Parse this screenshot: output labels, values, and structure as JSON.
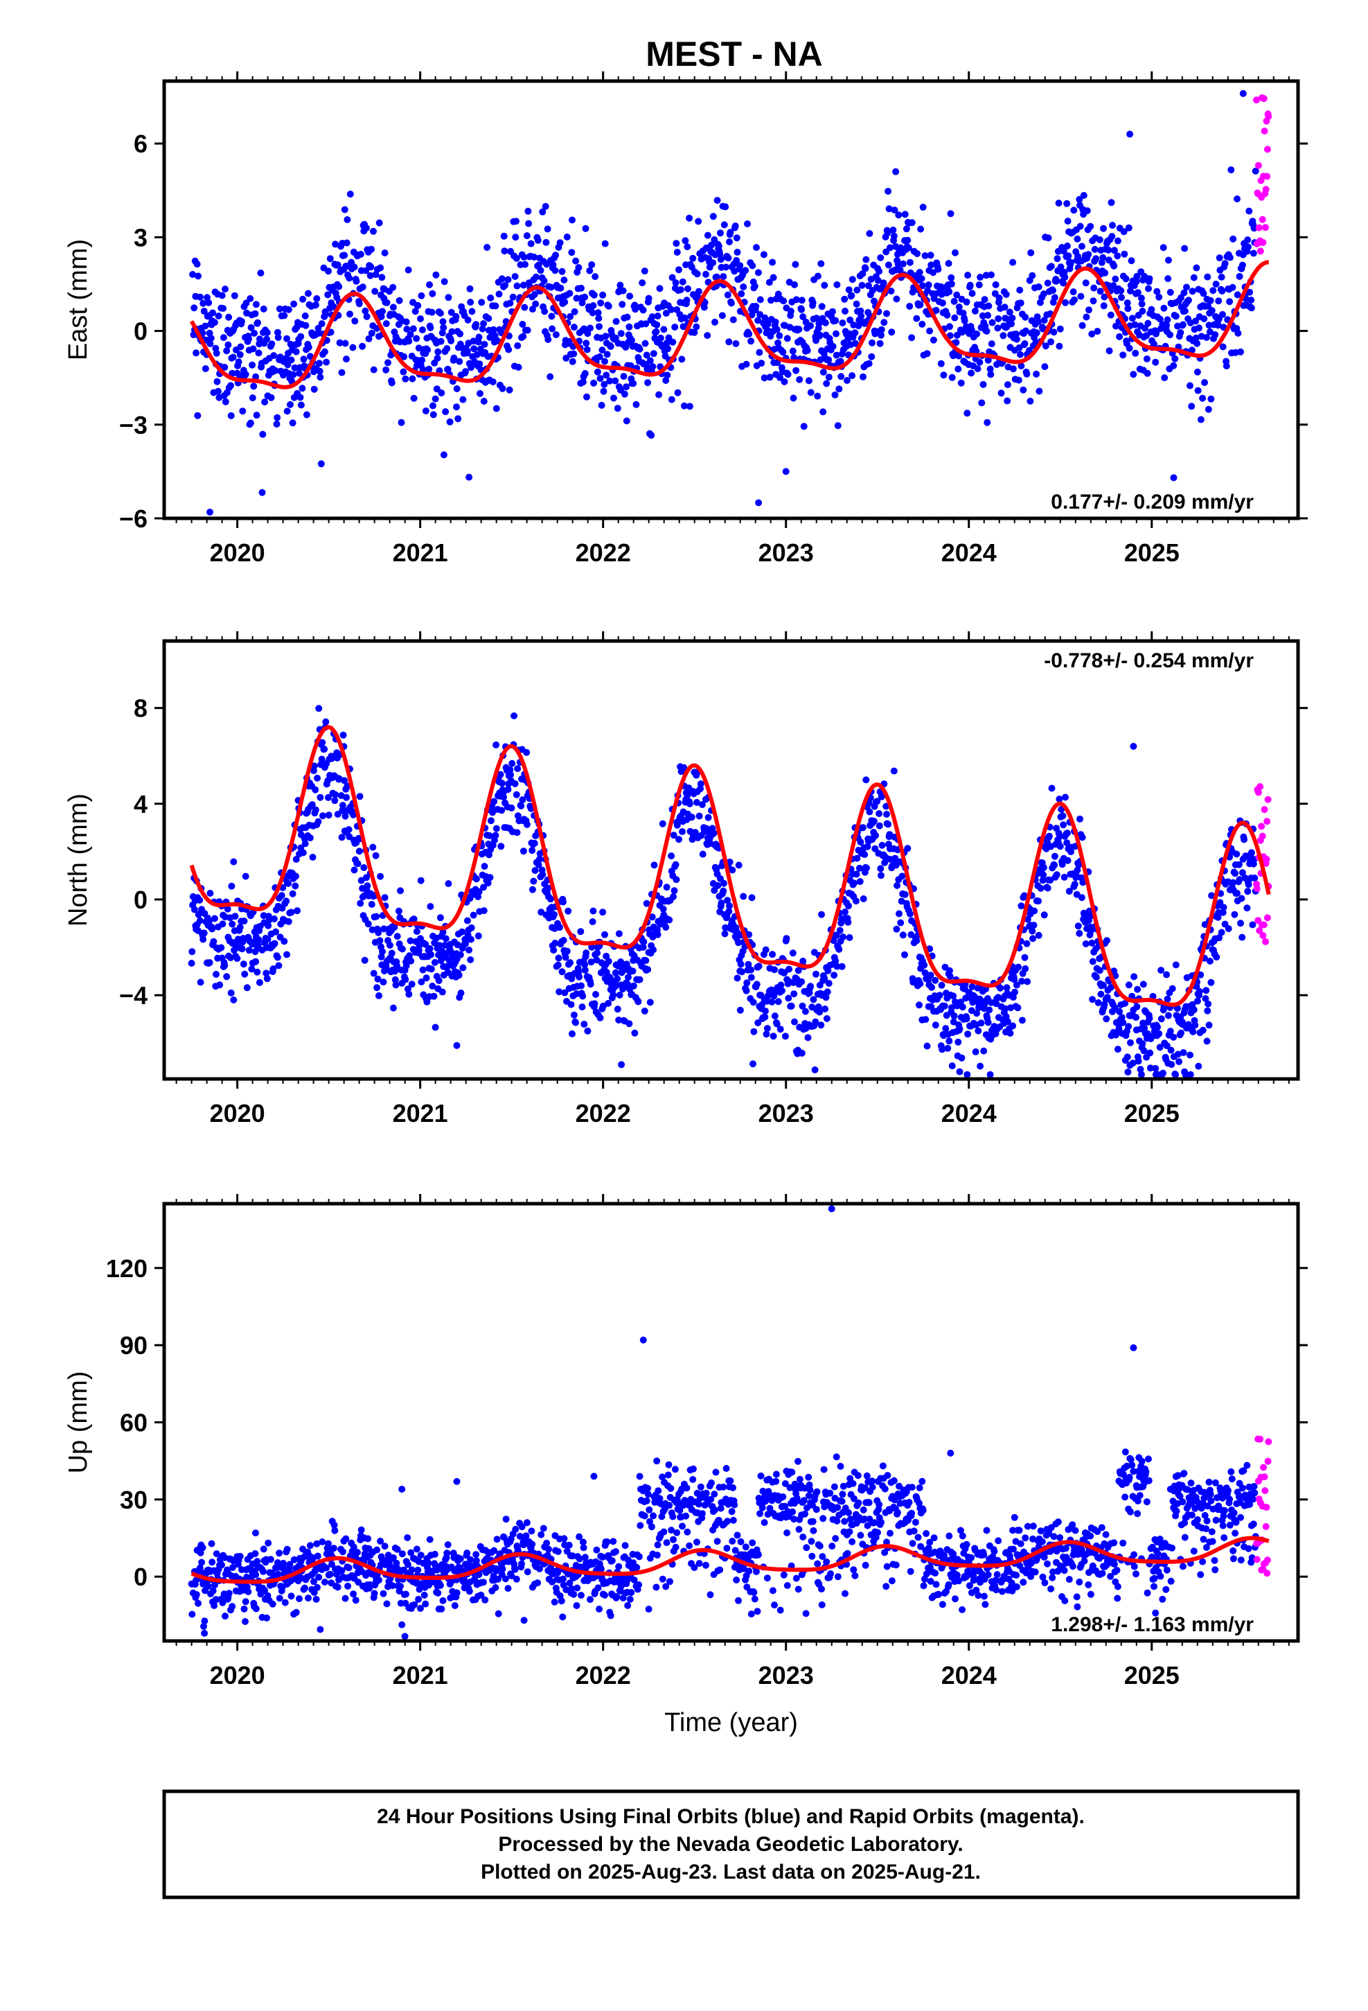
{
  "title": "MEST - NA",
  "colors": {
    "final": "#0000ff",
    "rapid": "#ff00ff",
    "model": "#ff0000",
    "frame": "#000000"
  },
  "footer": {
    "line1": "24 Hour Positions Using Final Orbits (blue) and Rapid Orbits (magenta).",
    "line2": "Processed by the Nevada Geodetic Laboratory.",
    "line3": "Plotted on 2025-Aug-23. Last data on 2025-Aug-21."
  },
  "chart_data": [
    {
      "type": "scatter",
      "component": "east",
      "ylabel": "East (mm)",
      "xlabel": "",
      "xlim": [
        2019.6,
        2025.8
      ],
      "ylim": [
        -6,
        8
      ],
      "yticks": [
        -6,
        -3,
        0,
        3,
        6
      ],
      "xticks": [
        2020,
        2021,
        2022,
        2023,
        2024,
        2025
      ],
      "rate_text": "0.177+/- 0.209 mm/yr",
      "rate_position": "bottom-right",
      "data_start": 2019.75,
      "final_end": 2025.57,
      "data_end": 2025.64,
      "model": {
        "offset": 0.0,
        "rate": 0.177,
        "annual_amplitude": 1.2,
        "annual_peak": 2020.65,
        "semiannual_amplitude": 0.4,
        "semiannual_phase": 0.3,
        "curve_min": -1.8,
        "curve_max": 2.2
      },
      "scatter_std": 1.1,
      "rapid_range": [
        2.5,
        7.6
      ],
      "outliers": [
        [
          2019.85,
          -5.8
        ],
        [
          2022.85,
          -5.5
        ],
        [
          2023.0,
          -4.5
        ],
        [
          2025.12,
          -4.7
        ],
        [
          2024.88,
          6.3
        ],
        [
          2025.5,
          7.6
        ],
        [
          2023.6,
          5.1
        ]
      ]
    },
    {
      "type": "scatter",
      "component": "north",
      "ylabel": "North (mm)",
      "xlabel": "",
      "xlim": [
        2019.6,
        2025.8
      ],
      "ylim": [
        -7.5,
        10.8
      ],
      "yticks": [
        -4,
        0,
        4,
        8
      ],
      "xticks": [
        2020,
        2021,
        2022,
        2023,
        2024,
        2025
      ],
      "rate_text": "-0.778+/- 0.254 mm/yr",
      "rate_position": "top-right",
      "data_start": 2019.75,
      "final_end": 2025.57,
      "data_end": 2025.64,
      "model": {
        "offset": 1.2,
        "rate": -0.778,
        "annual_amplitude": 3.8,
        "annual_peak": 2020.5,
        "semiannual_amplitude": 1.2,
        "semiannual_phase": 0.0,
        "curve_min": -4.4,
        "curve_max": 7.2
      },
      "scatter_std": 1.1,
      "rapid_range": [
        -2.0,
        5.1
      ],
      "outliers": [
        [
          2019.98,
          -4.2
        ],
        [
          2021.2,
          -6.1
        ],
        [
          2022.1,
          -6.9
        ],
        [
          2023.95,
          -7.2
        ],
        [
          2024.9,
          6.4
        ]
      ]
    },
    {
      "type": "scatter",
      "component": "up",
      "ylabel": "Up (mm)",
      "xlabel": "Time (year)",
      "xlim": [
        2019.6,
        2025.8
      ],
      "ylim": [
        -25,
        145
      ],
      "yticks": [
        0,
        30,
        60,
        90,
        120
      ],
      "xticks": [
        2020,
        2021,
        2022,
        2023,
        2024,
        2025
      ],
      "rate_text": "1.298+/- 1.163 mm/yr",
      "rate_position": "bottom-right",
      "data_start": 2019.75,
      "final_end": 2025.57,
      "data_end": 2025.64,
      "model": {
        "offset": 2.0,
        "rate": 1.298,
        "annual_amplitude": 3.5,
        "annual_peak": 2020.55,
        "semiannual_amplitude": 0.8,
        "semiannual_phase": 0.2,
        "curve_min": -2.0,
        "curve_max": 15.0
      },
      "scatter_std": 5.5,
      "elevated_segments": [
        [
          2022.2,
          2022.72,
          30
        ],
        [
          2022.85,
          2023.17,
          32
        ],
        [
          2023.2,
          2023.75,
          30
        ],
        [
          2024.82,
          2024.99,
          38
        ],
        [
          2025.09,
          2025.57,
          30
        ]
      ],
      "rapid_range": [
        -2,
        56
      ],
      "outliers": [
        [
          2022.22,
          92
        ],
        [
          2023.25,
          143
        ],
        [
          2024.9,
          89
        ],
        [
          2019.82,
          -22
        ],
        [
          2020.1,
          17
        ],
        [
          2020.9,
          34
        ],
        [
          2021.2,
          37
        ],
        [
          2021.95,
          39
        ],
        [
          2023.9,
          48
        ],
        [
          2024.25,
          23
        ]
      ]
    }
  ]
}
